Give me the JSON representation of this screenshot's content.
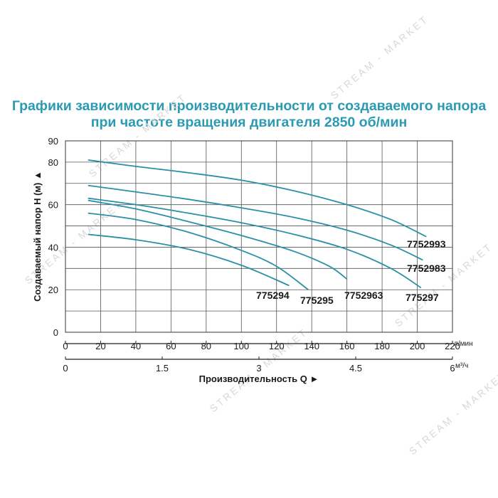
{
  "title_line1": "Графики зависимости производительности от создаваемого напора",
  "title_line2": "при частоте вращения двигателя 2850 об/мин",
  "watermark": "STREAM - MARKET",
  "colors": {
    "title": "#2b9ab3",
    "curve": "#2b8fa6",
    "grid": "#555555"
  },
  "chart_data": {
    "type": "line",
    "ylabel": "Создаваемый напор Н (м) ▲",
    "xlabel": "Производительность Q ►",
    "ylim": [
      0,
      90
    ],
    "xlim": [
      0,
      220
    ],
    "y_ticks": [
      "0",
      "20",
      "40",
      "60",
      "80",
      "90"
    ],
    "x_ticks_lpm": [
      "0",
      "20",
      "40",
      "60",
      "80",
      "100",
      "120",
      "140",
      "160",
      "180",
      "200",
      "220"
    ],
    "x_unit_lpm": "л/мин",
    "x_ticks_m3h": [
      "0",
      "1.5",
      "3",
      "4.5",
      "6"
    ],
    "x_unit_m3h": "м³/ч",
    "grid": true,
    "series": [
      {
        "name": "7752993",
        "x": [
          13,
          40,
          70,
          100,
          130,
          160,
          185,
          205
        ],
        "y": [
          81,
          78,
          75,
          71.5,
          66.5,
          60,
          53,
          45
        ]
      },
      {
        "name": "7752983",
        "x": [
          13,
          40,
          70,
          100,
          130,
          160,
          185,
          203
        ],
        "y": [
          69,
          66,
          62.5,
          58.5,
          54,
          48,
          41,
          34
        ]
      },
      {
        "name": "775297",
        "x": [
          13,
          40,
          70,
          100,
          130,
          160,
          185,
          202
        ],
        "y": [
          63,
          60,
          56,
          51.5,
          46,
          39,
          30,
          21
        ]
      },
      {
        "name": "7752963",
        "x": [
          13,
          40,
          70,
          100,
          130,
          150,
          160
        ],
        "y": [
          62,
          58,
          52,
          45.5,
          38,
          31,
          25
        ]
      },
      {
        "name": "775295",
        "x": [
          13,
          40,
          70,
          100,
          120,
          138
        ],
        "y": [
          56,
          53,
          47,
          38.5,
          31,
          20
        ]
      },
      {
        "name": "775294",
        "x": [
          13,
          40,
          70,
          100,
          127
        ],
        "y": [
          46,
          43.5,
          39,
          31.5,
          22
        ]
      }
    ]
  }
}
